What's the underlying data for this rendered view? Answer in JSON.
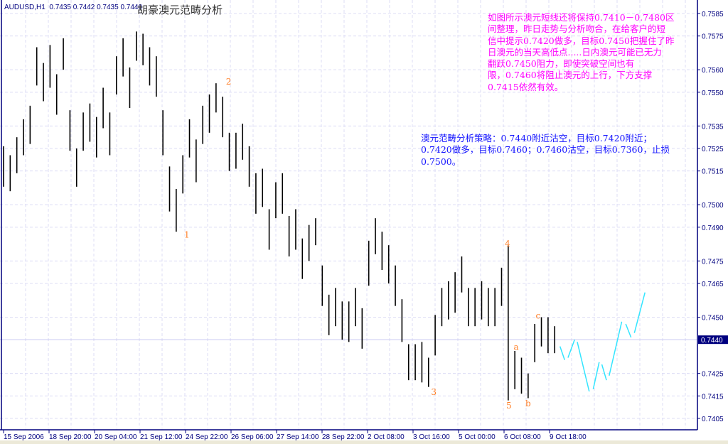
{
  "header": {
    "symbol": "AUDUSD,H1",
    "ohlc": "0.7435 0.7442 0.7435 0.7440"
  },
  "title": "胡豪澳元范畴分析",
  "notes": {
    "magenta": {
      "color": "#ff00ff",
      "lines": [
        "如图所示澳元短线还将保持0.7410－0.7480区",
        "间整理，昨日走势与分析吻合，在给客户的短",
        "信中提示0.7420做多，目标0.7450把握住了昨",
        "日澳元的当天高低点.....日内澳元可能已无力",
        "翻跃0.7450阻力，即使突破空间也有",
        "限，0.7460将阻止澳元的上行，下方支撑",
        "0.7415依然有效。"
      ]
    },
    "blue": {
      "color": "#1414ff",
      "lines": [
        "澳元范畴分析策略：0.7440附近沽空，目标0.7420附近；",
        "0.7420做多，目标0.7460；0.7460沽空，目标0.7360，止损",
        "0.7500。"
      ]
    }
  },
  "chart_data": {
    "type": "bar",
    "symbol": "AUDUSD",
    "timeframe": "H1",
    "ylim": [
      0.7402,
      0.759
    ],
    "grid": true,
    "current_price": "0.7440",
    "bar_color": "#000000",
    "y_ticks": [
      "0.7585",
      "0.7575",
      "0.7560",
      "0.7550",
      "0.7535",
      "0.7525",
      "0.7515",
      "0.7500",
      "0.7490",
      "0.7475",
      "0.7465",
      "0.7450",
      "0.7425",
      "0.7415",
      "0.7405"
    ],
    "x_ticks": [
      "15 Sep 2006",
      "18 Sep 20:00",
      "20 Sep 04:00",
      "21 Sep 12:00",
      "24 Sep 22:00",
      "26 Sep 06:00",
      "27 Sep 14:00",
      "28 Sep 22:00",
      "2 Oct 08:00",
      "3 Oct 16:00",
      "5 Oct 00:00",
      "6 Oct 08:00",
      "9 Oct 18:00"
    ],
    "bars_high_low": [
      [
        0.7526,
        0.7508
      ],
      [
        0.7522,
        0.7506
      ],
      [
        0.753,
        0.7514
      ],
      [
        0.7538,
        0.7522
      ],
      [
        0.7544,
        0.7527
      ],
      [
        0.757,
        0.7553
      ],
      [
        0.7563,
        0.7546
      ],
      [
        0.7571,
        0.7552
      ],
      [
        0.7558,
        0.754
      ],
      [
        0.7574,
        0.756
      ],
      [
        0.7542,
        0.7524
      ],
      [
        0.7525,
        0.7508
      ],
      [
        0.7541,
        0.7524
      ],
      [
        0.7545,
        0.7528
      ],
      [
        0.7539,
        0.7521
      ],
      [
        0.7552,
        0.7534
      ],
      [
        0.7541,
        0.7522
      ],
      [
        0.7566,
        0.7549
      ],
      [
        0.7574,
        0.7557
      ],
      [
        0.7561,
        0.7543
      ],
      [
        0.7577,
        0.7564
      ],
      [
        0.7576,
        0.7562
      ],
      [
        0.757,
        0.7553
      ],
      [
        0.7566,
        0.7548
      ],
      [
        0.7542,
        0.7522
      ],
      [
        0.7517,
        0.7497
      ],
      [
        0.7507,
        0.7488
      ],
      [
        0.7522,
        0.7505
      ],
      [
        0.7538,
        0.7521
      ],
      [
        0.7529,
        0.751
      ],
      [
        0.7544,
        0.7527
      ],
      [
        0.7549,
        0.7532
      ],
      [
        0.7554,
        0.7541
      ],
      [
        0.7548,
        0.753
      ],
      [
        0.7532,
        0.7515
      ],
      [
        0.7532,
        0.7516
      ],
      [
        0.7536,
        0.752
      ],
      [
        0.7526,
        0.7508
      ],
      [
        0.7514,
        0.7496
      ],
      [
        0.7516,
        0.7499
      ],
      [
        0.7498,
        0.748
      ],
      [
        0.751,
        0.7494
      ],
      [
        0.7514,
        0.7496
      ],
      [
        0.7495,
        0.7477
      ],
      [
        0.7498,
        0.748
      ],
      [
        0.7485,
        0.7467
      ],
      [
        0.7491,
        0.7475
      ],
      [
        0.7494,
        0.7482
      ],
      [
        0.7473,
        0.7455
      ],
      [
        0.746,
        0.7442
      ],
      [
        0.7463,
        0.7446
      ],
      [
        0.7457,
        0.744
      ],
      [
        0.7457,
        0.7439
      ],
      [
        0.7463,
        0.7446
      ],
      [
        0.7454,
        0.7436
      ],
      [
        0.7484,
        0.7464
      ],
      [
        0.7494,
        0.7478
      ],
      [
        0.7488,
        0.7471
      ],
      [
        0.7482,
        0.7465
      ],
      [
        0.7473,
        0.7455
      ],
      [
        0.7458,
        0.7439
      ],
      [
        0.7438,
        0.7422
      ],
      [
        0.7438,
        0.7422
      ],
      [
        0.7439,
        0.7421
      ],
      [
        0.7432,
        0.7419
      ],
      [
        0.7451,
        0.7433
      ],
      [
        0.7463,
        0.7446
      ],
      [
        0.7466,
        0.7449
      ],
      [
        0.747,
        0.7452
      ],
      [
        0.7477,
        0.7461
      ],
      [
        0.7463,
        0.7446
      ],
      [
        0.7463,
        0.7446
      ],
      [
        0.7466,
        0.7449
      ],
      [
        0.7463,
        0.7446
      ],
      [
        0.7463,
        0.7446
      ],
      [
        0.7472,
        0.7455
      ],
      [
        0.7482,
        0.7413
      ],
      [
        0.7435,
        0.7418
      ],
      [
        0.7432,
        0.7416
      ],
      [
        0.7425,
        0.7414
      ],
      [
        0.7447,
        0.743
      ],
      [
        0.745,
        0.7437
      ],
      [
        0.745,
        0.7434
      ],
      [
        0.7446,
        0.7434
      ]
    ],
    "wave_labels": [
      {
        "text": "1",
        "bar": 27.6,
        "price": 0.7487
      },
      {
        "text": "2",
        "bar": 33.9,
        "price": 0.7555
      },
      {
        "text": "3",
        "bar": 64.8,
        "price": 0.7417
      },
      {
        "text": "4",
        "bar": 75.9,
        "price": 0.7483
      },
      {
        "text": "5",
        "bar": 76.1,
        "price": 0.7411
      },
      {
        "text": "a",
        "bar": 77.2,
        "price": 0.7437
      },
      {
        "text": "b",
        "bar": 79.0,
        "price": 0.7412
      },
      {
        "text": "c",
        "bar": 80.5,
        "price": 0.7451
      }
    ],
    "wave_label_color": "#ff7f27",
    "forecast_color": "#33e5ff",
    "forecast_segments": [
      [
        [
          83.8,
          0.7437
        ],
        [
          84.5,
          0.7431
        ]
      ],
      [
        [
          85.0,
          0.7432
        ],
        [
          86.0,
          0.744
        ]
      ],
      [
        [
          86.4,
          0.7439
        ],
        [
          88.2,
          0.7417
        ]
      ],
      [
        [
          88.8,
          0.7418
        ],
        [
          89.7,
          0.743
        ]
      ],
      [
        [
          90.1,
          0.7429
        ],
        [
          90.8,
          0.7422
        ]
      ],
      [
        [
          91.2,
          0.7424
        ],
        [
          93.1,
          0.7448
        ]
      ],
      [
        [
          93.7,
          0.7447
        ],
        [
          94.5,
          0.7441
        ]
      ],
      [
        [
          95.0,
          0.7443
        ],
        [
          96.6,
          0.7461
        ]
      ]
    ]
  }
}
